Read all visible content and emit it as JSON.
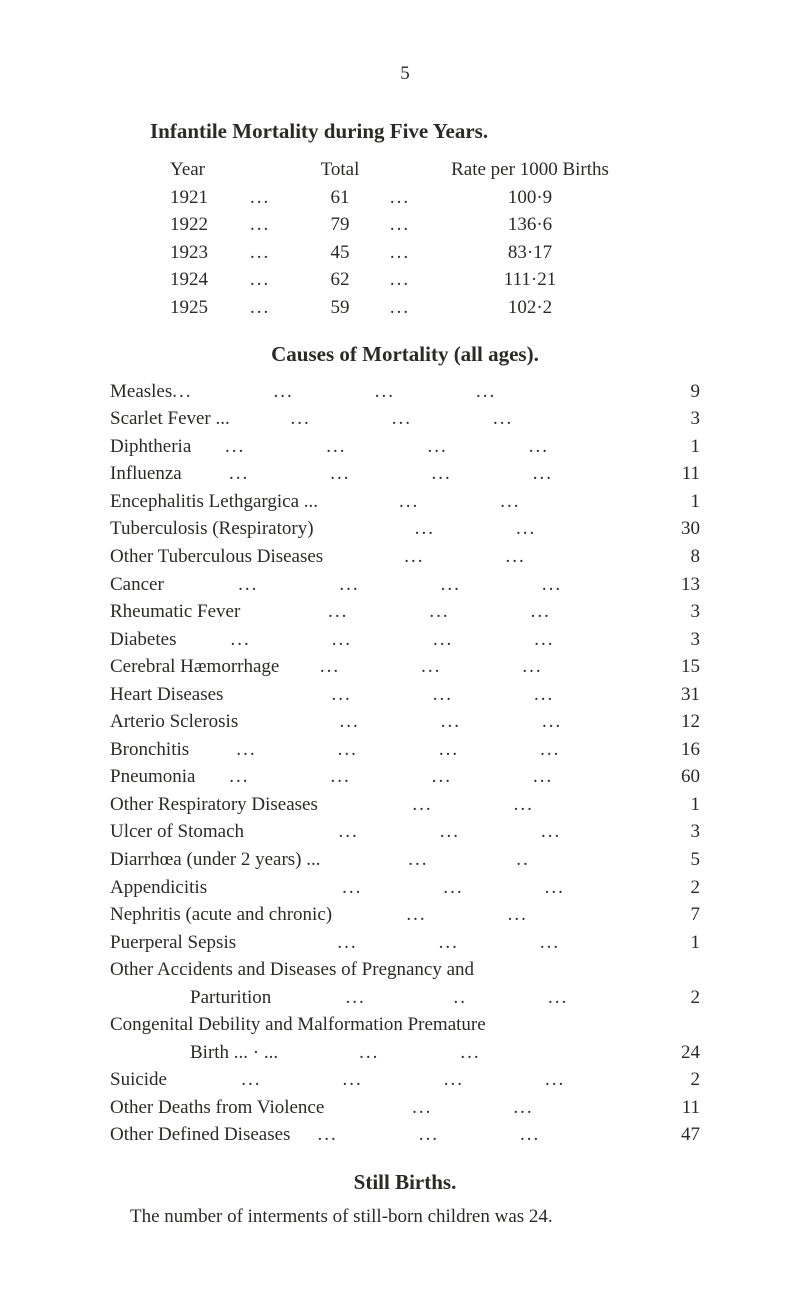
{
  "page_number": "5",
  "colors": {
    "text": "#2a2a28",
    "background": "#ffffff"
  },
  "typography": {
    "family": "serif",
    "body_size_pt": 14,
    "title_size_pt": 16,
    "title_weight": "bold"
  },
  "section1": {
    "title": "Infantile Mortality during Five Years.",
    "headers": {
      "c1": "Year",
      "c2": "Total",
      "c3": "Rate per 1000 Births"
    },
    "rows": [
      {
        "year": "1921",
        "total": "61",
        "rate": "100·9"
      },
      {
        "year": "1922",
        "total": "79",
        "rate": "136·6"
      },
      {
        "year": "1923",
        "total": "45",
        "rate": "83·17"
      },
      {
        "year": "1924",
        "total": "62",
        "rate": "111·21"
      },
      {
        "year": "1925",
        "total": "59",
        "rate": "102·2"
      }
    ]
  },
  "section2": {
    "title": "Causes of Mortality (all ages).",
    "rows": [
      {
        "label": "Measles",
        "dots": "...            ...            ...            ...",
        "value": "9"
      },
      {
        "label": "Scarlet Fever ...",
        "dots": "         ...            ...            ...",
        "value": "3"
      },
      {
        "label": "Diphtheria",
        "dots": "     ...            ...            ...            ...",
        "value": "1"
      },
      {
        "label": "Influenza",
        "dots": "       ...            ...            ...            ...",
        "value": "11"
      },
      {
        "label": "Encephalitis Lethgargica ...",
        "dots": "            ...            ...",
        "value": "1"
      },
      {
        "label": "Tuberculosis (Respiratory)",
        "dots": "               ...            ...",
        "value": "30"
      },
      {
        "label": "Other Tuberculous Diseases",
        "dots": "            ...            ...",
        "value": "8"
      },
      {
        "label": "Cancer",
        "dots": "           ...            ...            ...            ...",
        "value": "13"
      },
      {
        "label": "Rheumatic Fever",
        "dots": "             ...            ...            ...",
        "value": "3"
      },
      {
        "label": "Diabetes",
        "dots": "        ...            ...            ...            ...",
        "value": "3"
      },
      {
        "label": "Cerebral Hæmorrhage",
        "dots": "      ...            ...            ...",
        "value": "15"
      },
      {
        "label": "Heart Diseases",
        "dots": "                ...            ...            ...",
        "value": "31"
      },
      {
        "label": "Arterio Sclerosis",
        "dots": "               ...            ...            ...",
        "value": "12"
      },
      {
        "label": "Bronchitis",
        "dots": "       ...            ...            ...            ...",
        "value": "16"
      },
      {
        "label": "Pneumonia",
        "dots": "     ...            ...            ...            ...",
        "value": "60"
      },
      {
        "label": "Other Respiratory Diseases",
        "dots": "              ...            ...",
        "value": "1"
      },
      {
        "label": "Ulcer of Stomach",
        "dots": "              ...            ...            ...",
        "value": "3"
      },
      {
        "label": "Diarrhœa (under 2 years) ...",
        "dots": "             ...             ..",
        "value": "5"
      },
      {
        "label": "Appendicitis",
        "dots": "                    ...            ...            ...",
        "value": "2"
      },
      {
        "label": "Nephritis (acute and chronic)",
        "dots": "           ...            ...",
        "value": "7"
      },
      {
        "label": "Puerperal Sepsis",
        "dots": "               ...            ...            ...",
        "value": "1"
      },
      {
        "label": "Other Accidents and Diseases of Pregnancy and",
        "dots": "",
        "value": ""
      },
      {
        "label": "Parturition",
        "sub": true,
        "dots": "           ...             ..            ...",
        "value": "2"
      },
      {
        "label": "Congenital Debility and Malformation Premature",
        "dots": "",
        "value": ""
      },
      {
        "label": "Birth    ...    ·     ...",
        "sub": true,
        "dots": "            ...            ...",
        "value": "24"
      },
      {
        "label": "Suicide",
        "dots": "           ...            ...            ...            ...",
        "value": "2"
      },
      {
        "label": "Other Deaths from Violence",
        "dots": "             ...            ...",
        "value": "11"
      },
      {
        "label": "Other Defined Diseases",
        "dots": "    ...            ...            ...",
        "value": "47"
      }
    ]
  },
  "section3": {
    "title": "Still Births.",
    "text": "The number of interments of still-born children was 24."
  }
}
